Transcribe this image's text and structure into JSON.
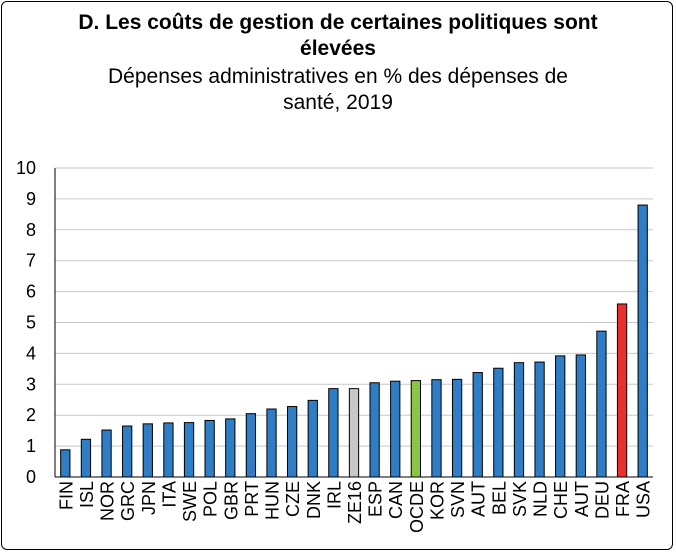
{
  "chart_data": {
    "type": "bar",
    "title": "D. Les coûts de gestion de certaines politiques sont élevées",
    "subtitle": "Dépenses administratives en % des dépenses de santé, 2019",
    "xlabel": "",
    "ylabel": "",
    "ylim": [
      0,
      10
    ],
    "yticks": [
      "0",
      "1",
      "2",
      "3",
      "4",
      "5",
      "6",
      "7",
      "8",
      "9",
      "10"
    ],
    "grid": true,
    "categories": [
      "FIN",
      "ISL",
      "NOR",
      "GRC",
      "JPN",
      "ITA",
      "SWE",
      "POL",
      "GBR",
      "PRT",
      "HUN",
      "CZE",
      "DNK",
      "IRL",
      "ZE16",
      "ESP",
      "CAN",
      "OCDE",
      "KOR",
      "SVN",
      "AUT",
      "BEL",
      "SVK",
      "NLD",
      "CHE",
      "AUT",
      "DEU",
      "FRA",
      "USA"
    ],
    "values": [
      0.88,
      1.22,
      1.52,
      1.65,
      1.72,
      1.75,
      1.76,
      1.83,
      1.88,
      2.05,
      2.2,
      2.28,
      2.48,
      2.86,
      2.86,
      3.05,
      3.1,
      3.12,
      3.15,
      3.16,
      3.38,
      3.52,
      3.7,
      3.72,
      3.92,
      3.95,
      4.72,
      5.6,
      8.8
    ],
    "colors": {
      "default": "#2f7dc5",
      "ZE16": "#c8c8c8",
      "OCDE": "#8cc63f",
      "FRA": "#e8312f"
    }
  }
}
